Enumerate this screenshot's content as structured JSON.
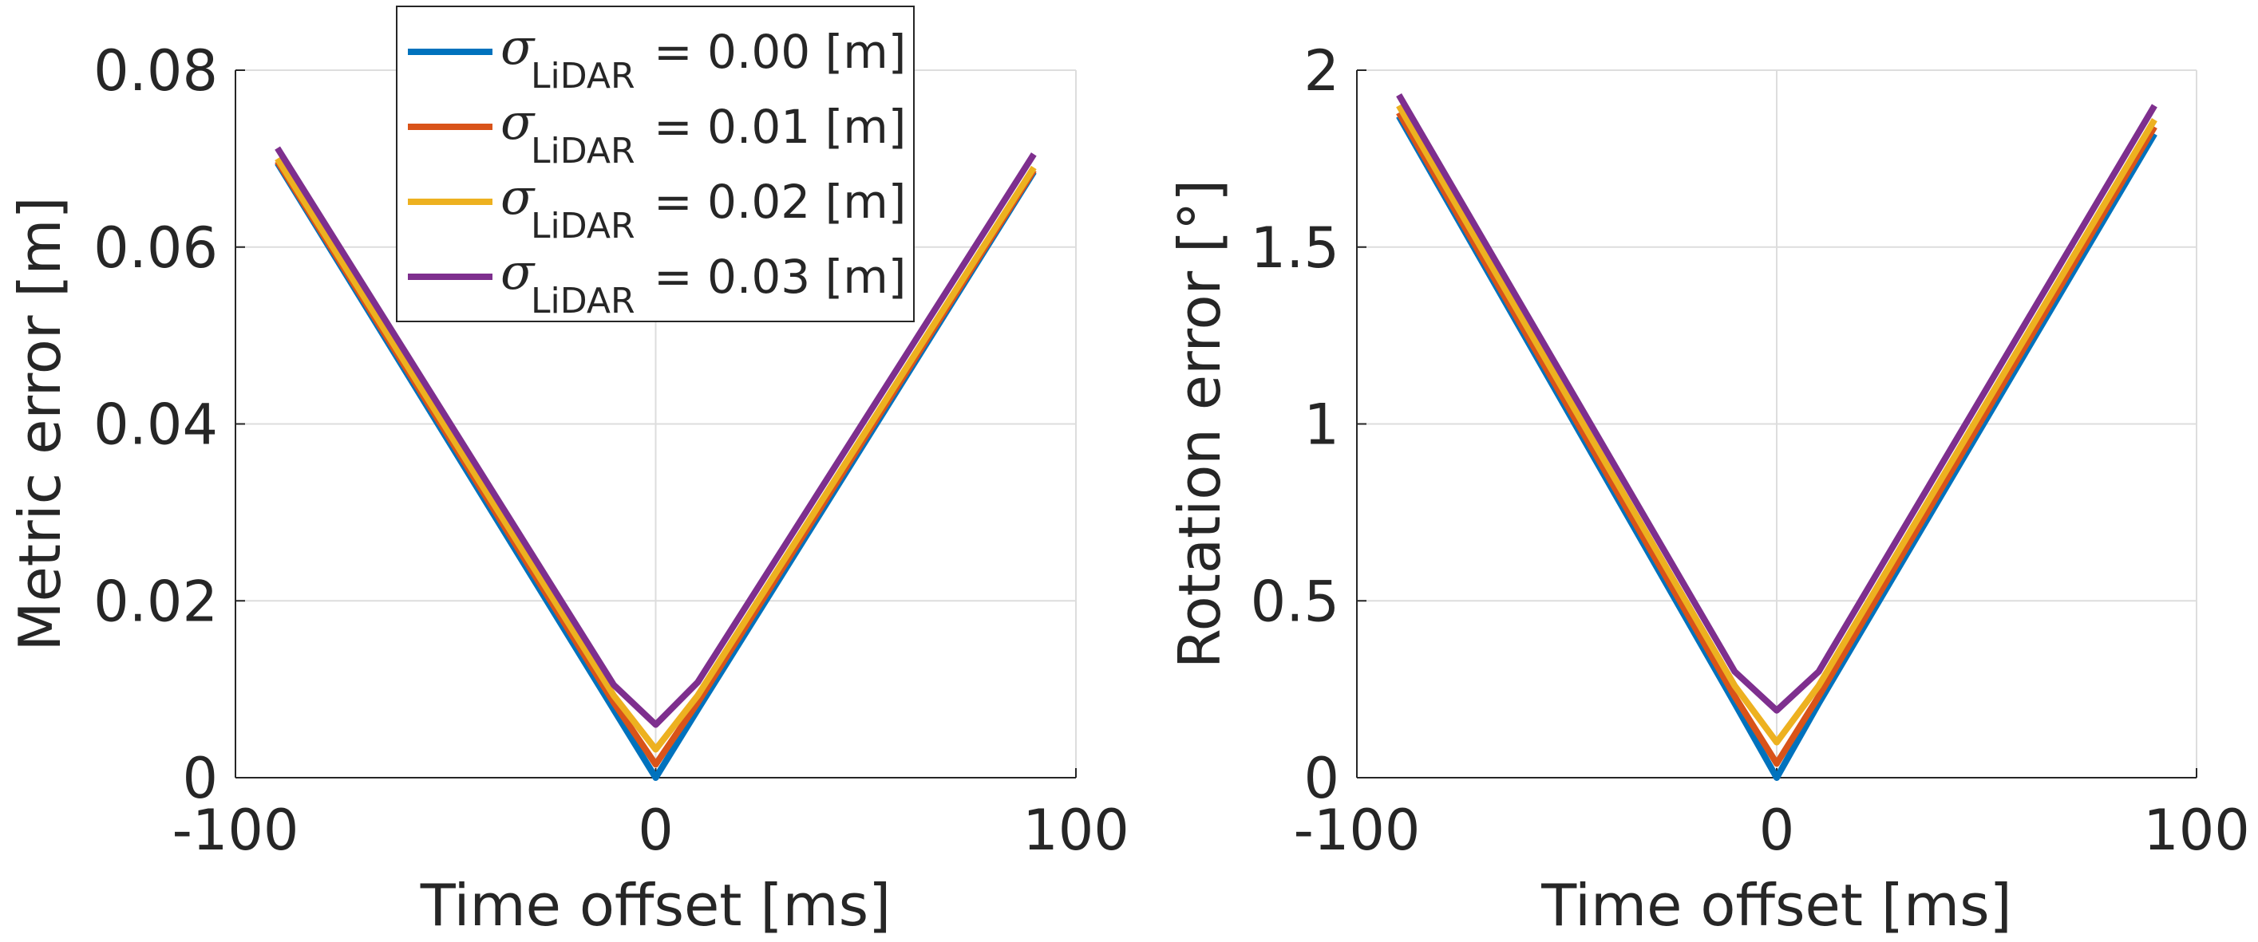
{
  "chart_data": [
    {
      "type": "line",
      "xlabel": "Time offset [ms]",
      "ylabel": "Metric error [m]",
      "xlim": [
        -100,
        100
      ],
      "ylim": [
        0,
        0.08
      ],
      "xticks": [
        -100,
        0,
        100
      ],
      "xtick_labels": [
        "-100",
        "0",
        "100"
      ],
      "yticks": [
        0,
        0.02,
        0.04,
        0.06,
        0.08
      ],
      "ytick_labels": [
        "0",
        "0.02",
        "0.04",
        "0.06",
        "0.08"
      ],
      "grid": true,
      "legend_position": "top-left",
      "x": [
        -90,
        -10,
        0,
        10,
        90
      ],
      "series": [
        {
          "name": "σLiDAR = 0.00 [m]",
          "legend_label": "= 0.00 [m]",
          "color": "#0072BD",
          "values": [
            0.0695,
            0.0077,
            0.0,
            0.0077,
            0.0685
          ]
        },
        {
          "name": "σLiDAR = 0.01 [m]",
          "legend_label": "= 0.01 [m]",
          "color": "#D95319",
          "values": [
            0.0697,
            0.0085,
            0.0015,
            0.0085,
            0.0687
          ]
        },
        {
          "name": "σLiDAR = 0.02 [m]",
          "legend_label": "= 0.02 [m]",
          "color": "#EDB120",
          "values": [
            0.07,
            0.0093,
            0.0032,
            0.0093,
            0.069
          ]
        },
        {
          "name": "σLiDAR = 0.03 [m]",
          "legend_label": "= 0.03 [m]",
          "color": "#7E2F8E",
          "values": [
            0.0712,
            0.0105,
            0.006,
            0.0108,
            0.0705
          ]
        }
      ]
    },
    {
      "type": "line",
      "xlabel": "Time offset [ms]",
      "ylabel": "Rotation error [°]",
      "xlim": [
        -100,
        100
      ],
      "ylim": [
        0,
        2
      ],
      "xticks": [
        -100,
        0,
        100
      ],
      "xtick_labels": [
        "-100",
        "0",
        "100"
      ],
      "yticks": [
        0,
        0.5,
        1,
        1.5,
        2
      ],
      "ytick_labels": [
        "0",
        "0.5",
        "1",
        "1.5",
        "2"
      ],
      "grid": true,
      "x": [
        -90,
        -10,
        0,
        10,
        90
      ],
      "series": [
        {
          "name": "σLiDAR = 0.00 [m]",
          "color": "#0072BD",
          "values": [
            1.87,
            0.21,
            0.0,
            0.21,
            1.82
          ]
        },
        {
          "name": "σLiDAR = 0.01 [m]",
          "color": "#D95319",
          "values": [
            1.88,
            0.23,
            0.04,
            0.23,
            1.84
          ]
        },
        {
          "name": "σLiDAR = 0.02 [m]",
          "color": "#EDB120",
          "values": [
            1.9,
            0.26,
            0.1,
            0.26,
            1.86
          ]
        },
        {
          "name": "σLiDAR = 0.03 [m]",
          "color": "#7E2F8E",
          "values": [
            1.93,
            0.3,
            0.19,
            0.3,
            1.9
          ]
        }
      ]
    }
  ],
  "legend": {
    "sigma": "σ",
    "subscript": "LiDAR"
  }
}
